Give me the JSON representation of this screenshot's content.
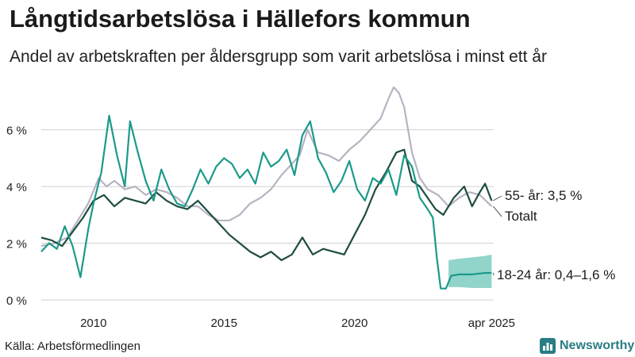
{
  "header": {
    "title": "Långtidsarbetslösa i Hällefors kommun",
    "subtitle": "Andel av arbetskraften per åldersgrupp som varit arbetslösa i minst ett år"
  },
  "footer": {
    "source": "Källa: Arbetsförmedlingen",
    "logo_text": "Newsworthy"
  },
  "colors": {
    "youth": "#1b9a8a",
    "youth_band": "#6cc6b8",
    "senior": "#1f4d3f",
    "total": "#b8b3c2",
    "grid": "#d0d0d0",
    "logo": "#2a7d84"
  },
  "chart_data": {
    "type": "line",
    "title": "Långtidsarbetslösa i Hällefors kommun",
    "subtitle": "Andel av arbetskraften per åldersgrupp som varit arbetslösa i minst ett år",
    "xlabel": "",
    "ylabel": "",
    "xlim": [
      2008.0,
      2025.33
    ],
    "ylim": [
      0,
      7.5
    ],
    "yticks": [
      0,
      2,
      4,
      6
    ],
    "ytick_labels": [
      "0 %",
      "2 %",
      "4 %",
      "6 %"
    ],
    "xticks": [
      2010,
      2015,
      2020,
      2025.25
    ],
    "xtick_labels": [
      "2010",
      "2015",
      "2020",
      "apr 2025"
    ],
    "grid": "horizontal",
    "series": [
      {
        "key": "total",
        "name": "Totalt",
        "label": "Totalt",
        "x": [
          2008.0,
          2008.5,
          2009.0,
          2009.4,
          2009.8,
          2010.2,
          2010.5,
          2010.8,
          2011.2,
          2011.6,
          2012.0,
          2012.4,
          2012.8,
          2013.2,
          2013.6,
          2014.0,
          2014.4,
          2014.8,
          2015.2,
          2015.6,
          2016.0,
          2016.4,
          2016.8,
          2017.2,
          2017.6,
          2017.9,
          2018.2,
          2018.6,
          2019.0,
          2019.4,
          2019.8,
          2020.2,
          2020.6,
          2021.0,
          2021.3,
          2021.5,
          2021.7,
          2021.9,
          2022.2,
          2022.5,
          2022.8,
          2023.2,
          2023.6,
          2024.0,
          2024.4,
          2024.8,
          2025.25
        ],
        "y": [
          1.9,
          2.0,
          2.2,
          2.8,
          3.4,
          4.3,
          4.0,
          4.2,
          3.9,
          4.0,
          3.7,
          3.9,
          3.8,
          3.6,
          3.3,
          3.3,
          3.0,
          2.8,
          2.8,
          3.0,
          3.4,
          3.6,
          3.9,
          4.4,
          4.8,
          5.1,
          6.0,
          5.2,
          5.1,
          4.9,
          5.3,
          5.6,
          6.0,
          6.4,
          7.1,
          7.5,
          7.3,
          6.8,
          5.2,
          4.3,
          3.9,
          3.7,
          3.3,
          3.6,
          3.8,
          3.7,
          3.3
        ]
      },
      {
        "key": "senior",
        "name": "55- år",
        "label": "55- år: 3,5 %",
        "x": [
          2008.0,
          2008.4,
          2008.8,
          2009.2,
          2009.6,
          2010.0,
          2010.4,
          2010.8,
          2011.2,
          2011.6,
          2012.0,
          2012.4,
          2012.8,
          2013.2,
          2013.6,
          2014.0,
          2014.4,
          2014.8,
          2015.2,
          2015.6,
          2016.0,
          2016.4,
          2016.8,
          2017.2,
          2017.6,
          2018.0,
          2018.4,
          2018.8,
          2019.2,
          2019.6,
          2020.0,
          2020.4,
          2020.8,
          2021.2,
          2021.6,
          2021.9,
          2022.2,
          2022.5,
          2022.8,
          2023.1,
          2023.4,
          2023.8,
          2024.2,
          2024.5,
          2024.8,
          2025.0,
          2025.25
        ],
        "y": [
          2.2,
          2.1,
          1.9,
          2.4,
          2.9,
          3.5,
          3.7,
          3.3,
          3.6,
          3.5,
          3.4,
          3.8,
          3.5,
          3.3,
          3.2,
          3.5,
          3.1,
          2.7,
          2.3,
          2.0,
          1.7,
          1.5,
          1.7,
          1.4,
          1.6,
          2.2,
          1.6,
          1.8,
          1.7,
          1.6,
          2.3,
          3.0,
          3.9,
          4.5,
          5.2,
          5.3,
          4.2,
          4.0,
          3.6,
          3.2,
          3.0,
          3.6,
          4.0,
          3.3,
          3.8,
          4.1,
          3.5
        ]
      },
      {
        "key": "youth",
        "name": "18-24 år",
        "label": "18-24 år: 0,4–1,6 %",
        "x": [
          2008.0,
          2008.3,
          2008.6,
          2008.9,
          2009.2,
          2009.5,
          2009.8,
          2010.0,
          2010.3,
          2010.6,
          2010.9,
          2011.2,
          2011.4,
          2011.7,
          2012.0,
          2012.3,
          2012.6,
          2012.9,
          2013.2,
          2013.5,
          2013.8,
          2014.1,
          2014.4,
          2014.7,
          2015.0,
          2015.3,
          2015.6,
          2015.9,
          2016.2,
          2016.5,
          2016.8,
          2017.1,
          2017.4,
          2017.7,
          2018.0,
          2018.3,
          2018.6,
          2018.9,
          2019.2,
          2019.5,
          2019.8,
          2020.1,
          2020.4,
          2020.7,
          2021.0,
          2021.3,
          2021.6,
          2021.9,
          2022.2,
          2022.5,
          2022.8,
          2023.0,
          2023.15,
          2023.3,
          2023.5,
          2023.7,
          2024.0,
          2024.5,
          2025.0,
          2025.25
        ],
        "y": [
          1.7,
          2.0,
          1.8,
          2.6,
          1.9,
          0.8,
          2.5,
          3.4,
          4.5,
          6.5,
          5.1,
          4.0,
          6.3,
          5.2,
          4.2,
          3.5,
          4.6,
          3.9,
          3.4,
          3.3,
          3.9,
          4.6,
          4.1,
          4.7,
          5.0,
          4.8,
          4.3,
          4.6,
          4.1,
          5.2,
          4.7,
          4.9,
          5.3,
          4.4,
          5.8,
          6.3,
          5.0,
          4.5,
          3.8,
          4.2,
          4.9,
          3.9,
          3.5,
          4.3,
          4.1,
          4.6,
          3.7,
          5.1,
          4.7,
          3.6,
          3.2,
          2.9,
          1.5,
          0.4,
          0.4,
          0.85,
          0.9,
          0.9,
          0.95,
          0.95
        ]
      }
    ],
    "band": {
      "series": "18-24 år",
      "x": [
        2023.6,
        2024.0,
        2024.5,
        2025.0,
        2025.25
      ],
      "low": [
        0.45,
        0.45,
        0.42,
        0.42,
        0.42
      ],
      "high": [
        1.4,
        1.45,
        1.5,
        1.55,
        1.6
      ]
    }
  }
}
